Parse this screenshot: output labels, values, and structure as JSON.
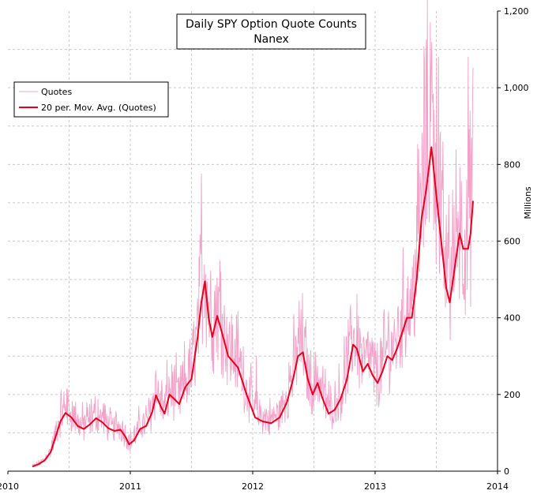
{
  "chart_data": {
    "type": "line",
    "title": "Daily SPY Option Quote Counts",
    "subtitle": "Nanex",
    "xlabel": "",
    "ylabel": "Millions",
    "xlim": [
      2010.0,
      2014.0
    ],
    "ylim": [
      0,
      1200
    ],
    "x_ticks": [
      "2010",
      "2011",
      "2012",
      "2013",
      "2014"
    ],
    "y_ticks": [
      "0",
      "200",
      "400",
      "600",
      "800",
      "1,000",
      "1,200"
    ],
    "grid": true,
    "legend_position": "top-left",
    "series": [
      {
        "name": "Quotes",
        "color": "#f4a0c8",
        "noise_amplitude": 0.32,
        "spikes": [
          {
            "x": 2010.48,
            "y": 215
          },
          {
            "x": 2011.58,
            "y": 775
          },
          {
            "x": 2011.74,
            "y": 520
          },
          {
            "x": 2012.03,
            "y": 300
          },
          {
            "x": 2012.39,
            "y": 375
          },
          {
            "x": 2012.94,
            "y": 360
          },
          {
            "x": 2013.18,
            "y": 360
          },
          {
            "x": 2013.42,
            "y": 1125
          },
          {
            "x": 2013.45,
            "y": 1170
          },
          {
            "x": 2013.52,
            "y": 1080
          },
          {
            "x": 2013.6,
            "y": 720
          },
          {
            "x": 2013.75,
            "y": 760
          },
          {
            "x": 2013.76,
            "y": 1080
          },
          {
            "x": 2013.79,
            "y": 870
          }
        ]
      },
      {
        "name": "20 per. Mov. Avg. (Quotes)",
        "color": "#e8001c",
        "points": [
          {
            "x": 2010.2,
            "y": 12
          },
          {
            "x": 2010.25,
            "y": 18
          },
          {
            "x": 2010.3,
            "y": 28
          },
          {
            "x": 2010.35,
            "y": 50
          },
          {
            "x": 2010.39,
            "y": 90
          },
          {
            "x": 2010.43,
            "y": 130
          },
          {
            "x": 2010.47,
            "y": 152
          },
          {
            "x": 2010.52,
            "y": 140
          },
          {
            "x": 2010.57,
            "y": 118
          },
          {
            "x": 2010.62,
            "y": 110
          },
          {
            "x": 2010.67,
            "y": 122
          },
          {
            "x": 2010.72,
            "y": 138
          },
          {
            "x": 2010.77,
            "y": 128
          },
          {
            "x": 2010.82,
            "y": 112
          },
          {
            "x": 2010.87,
            "y": 105
          },
          {
            "x": 2010.92,
            "y": 108
          },
          {
            "x": 2010.96,
            "y": 90
          },
          {
            "x": 2010.99,
            "y": 70
          },
          {
            "x": 2011.03,
            "y": 80
          },
          {
            "x": 2011.08,
            "y": 110
          },
          {
            "x": 2011.13,
            "y": 118
          },
          {
            "x": 2011.18,
            "y": 155
          },
          {
            "x": 2011.21,
            "y": 198
          },
          {
            "x": 2011.25,
            "y": 168
          },
          {
            "x": 2011.28,
            "y": 150
          },
          {
            "x": 2011.32,
            "y": 200
          },
          {
            "x": 2011.36,
            "y": 188
          },
          {
            "x": 2011.4,
            "y": 175
          },
          {
            "x": 2011.45,
            "y": 220
          },
          {
            "x": 2011.5,
            "y": 240
          },
          {
            "x": 2011.55,
            "y": 350
          },
          {
            "x": 2011.58,
            "y": 440
          },
          {
            "x": 2011.61,
            "y": 495
          },
          {
            "x": 2011.64,
            "y": 400
          },
          {
            "x": 2011.67,
            "y": 350
          },
          {
            "x": 2011.71,
            "y": 405
          },
          {
            "x": 2011.75,
            "y": 360
          },
          {
            "x": 2011.8,
            "y": 300
          },
          {
            "x": 2011.88,
            "y": 270
          },
          {
            "x": 2011.95,
            "y": 200
          },
          {
            "x": 2012.02,
            "y": 140
          },
          {
            "x": 2012.08,
            "y": 130
          },
          {
            "x": 2012.15,
            "y": 125
          },
          {
            "x": 2012.22,
            "y": 140
          },
          {
            "x": 2012.28,
            "y": 180
          },
          {
            "x": 2012.33,
            "y": 240
          },
          {
            "x": 2012.37,
            "y": 300
          },
          {
            "x": 2012.41,
            "y": 310
          },
          {
            "x": 2012.45,
            "y": 240
          },
          {
            "x": 2012.49,
            "y": 200
          },
          {
            "x": 2012.53,
            "y": 230
          },
          {
            "x": 2012.57,
            "y": 190
          },
          {
            "x": 2012.62,
            "y": 150
          },
          {
            "x": 2012.67,
            "y": 160
          },
          {
            "x": 2012.72,
            "y": 190
          },
          {
            "x": 2012.77,
            "y": 240
          },
          {
            "x": 2012.82,
            "y": 330
          },
          {
            "x": 2012.85,
            "y": 320
          },
          {
            "x": 2012.9,
            "y": 260
          },
          {
            "x": 2012.94,
            "y": 280
          },
          {
            "x": 2012.98,
            "y": 250
          },
          {
            "x": 2013.02,
            "y": 230
          },
          {
            "x": 2013.06,
            "y": 260
          },
          {
            "x": 2013.1,
            "y": 300
          },
          {
            "x": 2013.14,
            "y": 290
          },
          {
            "x": 2013.18,
            "y": 320
          },
          {
            "x": 2013.21,
            "y": 350
          },
          {
            "x": 2013.26,
            "y": 400
          },
          {
            "x": 2013.3,
            "y": 400
          },
          {
            "x": 2013.34,
            "y": 500
          },
          {
            "x": 2013.38,
            "y": 660
          },
          {
            "x": 2013.42,
            "y": 740
          },
          {
            "x": 2013.46,
            "y": 845
          },
          {
            "x": 2013.5,
            "y": 720
          },
          {
            "x": 2013.54,
            "y": 600
          },
          {
            "x": 2013.58,
            "y": 480
          },
          {
            "x": 2013.61,
            "y": 440
          },
          {
            "x": 2013.65,
            "y": 530
          },
          {
            "x": 2013.69,
            "y": 620
          },
          {
            "x": 2013.72,
            "y": 580
          },
          {
            "x": 2013.76,
            "y": 580
          },
          {
            "x": 2013.78,
            "y": 620
          },
          {
            "x": 2013.8,
            "y": 705
          }
        ]
      }
    ]
  }
}
